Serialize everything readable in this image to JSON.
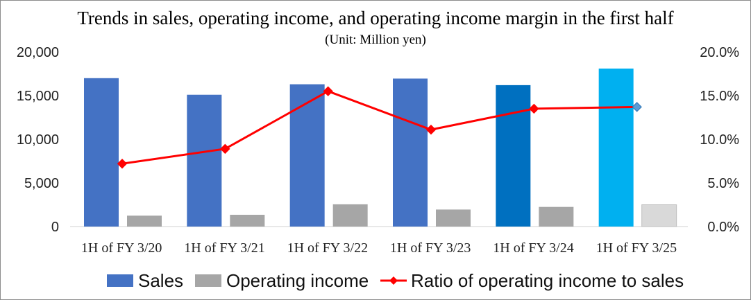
{
  "chart_data": {
    "type": "bar",
    "title": "Trends in sales, operating income, and operating income margin in the first half",
    "subtitle": "(Unit: Million yen)",
    "categories": [
      "1H of FY 3/20",
      "1H of FY 3/21",
      "1H of FY 3/22",
      "1H of FY 3/23",
      "1H of FY 3/24",
      "1H of FY 3/25"
    ],
    "y_left": {
      "ylim": [
        0,
        20000
      ],
      "ticks": [
        0,
        5000,
        10000,
        15000,
        20000
      ],
      "tick_labels": [
        "0",
        "5,000",
        "10,000",
        "15,000",
        "20,000"
      ]
    },
    "y_right": {
      "ylim": [
        0,
        20
      ],
      "ticks": [
        0,
        5,
        10,
        15,
        20
      ],
      "tick_labels": [
        "0.0%",
        "5.0%",
        "10.0%",
        "15.0%",
        "20.0%"
      ]
    },
    "series": [
      {
        "name": "Sales",
        "type": "bar",
        "axis": "left",
        "values": [
          17000,
          15100,
          16300,
          16950,
          16200,
          18100
        ],
        "colors": [
          "#4472C4",
          "#4472C4",
          "#4472C4",
          "#4472C4",
          "#0070C0",
          "#00B0F0"
        ]
      },
      {
        "name": "Operating income",
        "type": "bar",
        "axis": "left",
        "values": [
          1250,
          1350,
          2550,
          1950,
          2250,
          2500
        ],
        "colors": [
          "#A6A6A6",
          "#A6A6A6",
          "#A6A6A6",
          "#A6A6A6",
          "#A6A6A6",
          "#D9D9D9"
        ]
      },
      {
        "name": "Ratio of operating income to sales",
        "type": "line",
        "axis": "right",
        "values": [
          7.2,
          8.9,
          15.5,
          11.1,
          13.5,
          13.7
        ],
        "color": "#FF0000",
        "last_marker_color": "#5B9BD5"
      }
    ],
    "grid": false,
    "legend": "bottom",
    "legend_entries": [
      "Sales",
      "Operating income",
      "Ratio of operating income to sales"
    ],
    "legend_colors": [
      "#4472C4",
      "#A6A6A6",
      "#FF0000"
    ]
  }
}
